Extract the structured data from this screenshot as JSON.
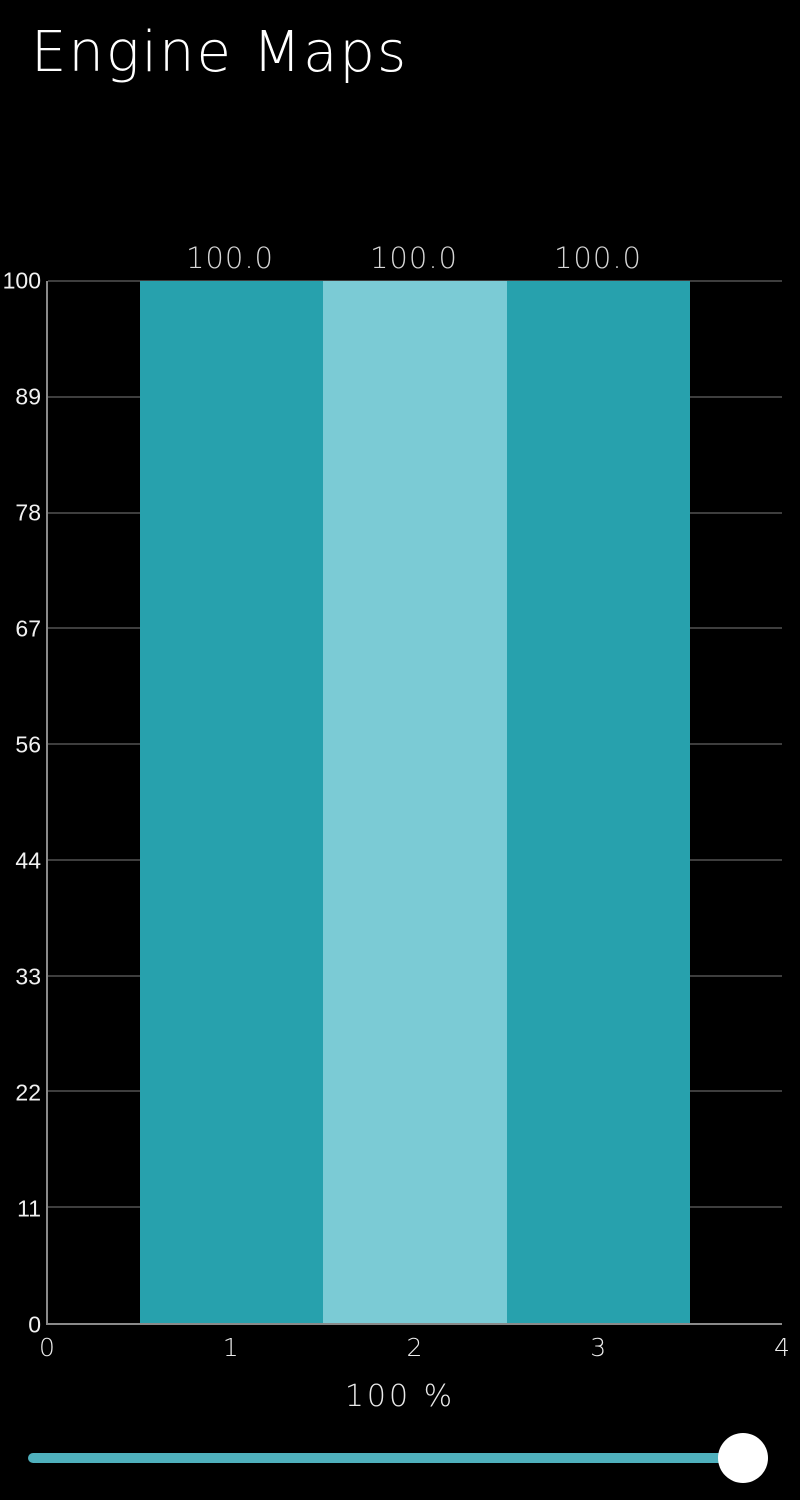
{
  "page": {
    "title": "Engine Maps",
    "background_color": "#000000"
  },
  "colors": {
    "bar_teal": "#27a1ad",
    "bar_light_teal": "#7bcbd5",
    "gridline": "#3e3e3e",
    "axis": "#8a8a8a",
    "slider_track": "#4fb0bd",
    "slider_thumb": "#ffffff",
    "title_text": "#ffffff",
    "tick_text": "#f1f1f1",
    "bar_label_text": "#d6d6d6"
  },
  "chart_data": {
    "type": "bar",
    "title": "",
    "xlabel": "",
    "ylabel": "",
    "x": [
      1,
      2,
      3
    ],
    "values": [
      100.0,
      100.0,
      100.0
    ],
    "bar_labels": [
      "100.0",
      "100.0",
      "100.0"
    ],
    "bar_colors": [
      "#27a1ad",
      "#7bcbd5",
      "#27a1ad"
    ],
    "bar_width": 1,
    "xlim": [
      0,
      4
    ],
    "ylim": [
      0,
      100
    ],
    "x_ticks": [
      "0",
      "1",
      "2",
      "3",
      "4"
    ],
    "y_ticks": [
      "100",
      "89",
      "78",
      "67",
      "56",
      "44",
      "33",
      "22",
      "11",
      "0"
    ],
    "grid": "horizontal",
    "legend": "none"
  },
  "slider": {
    "value_label": "100 %",
    "value_percent": 100
  }
}
